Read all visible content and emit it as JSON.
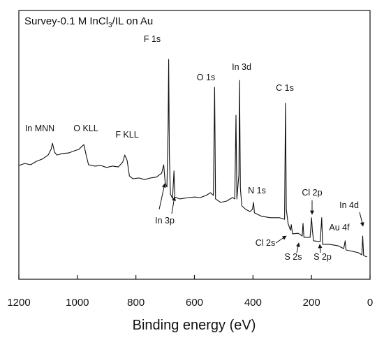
{
  "chart_data": {
    "type": "line",
    "title": [
      "Survey-0.1 M InCl",
      "3",
      "/IL on Au"
    ],
    "x_label": "Binding energy (eV)",
    "xlim": [
      1200,
      0
    ],
    "xticks": [
      1200,
      1000,
      800,
      600,
      400,
      200,
      0
    ],
    "ylim": [
      0,
      100
    ],
    "color": "#111111",
    "annotations": [
      "F 1s",
      "O 1s",
      "In 3d",
      "C 1s",
      "In MNN",
      "O KLL",
      "F KLL",
      "N 1s",
      "Cl 2p",
      "In 4d",
      "Au 4f",
      "In 3p",
      "Cl 2s",
      "S 2s",
      "S 2p"
    ],
    "x": [
      1200,
      1180,
      1160,
      1140,
      1120,
      1100,
      1090,
      1085,
      1078,
      1070,
      1050,
      1030,
      1010,
      995,
      985,
      978,
      970,
      962,
      940,
      920,
      900,
      880,
      860,
      845,
      838,
      830,
      822,
      810,
      790,
      770,
      750,
      730,
      712,
      705,
      700,
      694,
      690,
      688,
      686,
      682,
      675,
      670,
      667,
      650,
      620,
      600,
      580,
      560,
      545,
      535,
      531,
      528,
      510,
      490,
      470,
      462,
      458,
      455,
      448,
      446,
      443,
      438,
      425,
      410,
      402,
      398,
      395,
      370,
      340,
      310,
      292,
      289,
      286,
      280,
      272,
      269,
      265,
      245,
      232,
      229,
      226,
      205,
      200,
      197,
      193,
      170,
      165,
      162,
      140,
      110,
      90,
      85,
      82,
      60,
      40,
      28,
      25,
      22,
      10
    ],
    "values": [
      42.3,
      43.1,
      42.6,
      43.9,
      44.7,
      46.2,
      48.3,
      50.6,
      47.3,
      46.2,
      46.8,
      47.0,
      47.8,
      48.3,
      49.4,
      50.1,
      46.2,
      42.6,
      42.1,
      42.3,
      41.6,
      42.1,
      41.8,
      43.6,
      46.2,
      44.2,
      38.4,
      37.4,
      37.7,
      37.1,
      37.7,
      38.0,
      39.5,
      42.6,
      35.8,
      34.3,
      57.1,
      81.8,
      46.8,
      31.7,
      30.1,
      40.3,
      30.6,
      29.9,
      30.4,
      30.6,
      30.4,
      31.2,
      32.2,
      31.2,
      71.4,
      29.9,
      28.6,
      29.1,
      30.4,
      29.9,
      61.0,
      29.9,
      39.0,
      74.0,
      33.8,
      27.3,
      26.0,
      25.2,
      26.0,
      28.6,
      24.7,
      23.4,
      22.9,
      22.9,
      22.3,
      65.5,
      26.0,
      20.8,
      18.2,
      20.3,
      16.9,
      17.1,
      16.1,
      20.8,
      15.6,
      15.6,
      22.9,
      18.2,
      14.3,
      14.0,
      22.9,
      13.0,
      13.0,
      12.5,
      11.4,
      14.3,
      10.9,
      10.4,
      9.9,
      9.1,
      16.1,
      8.8,
      8.3
    ]
  }
}
